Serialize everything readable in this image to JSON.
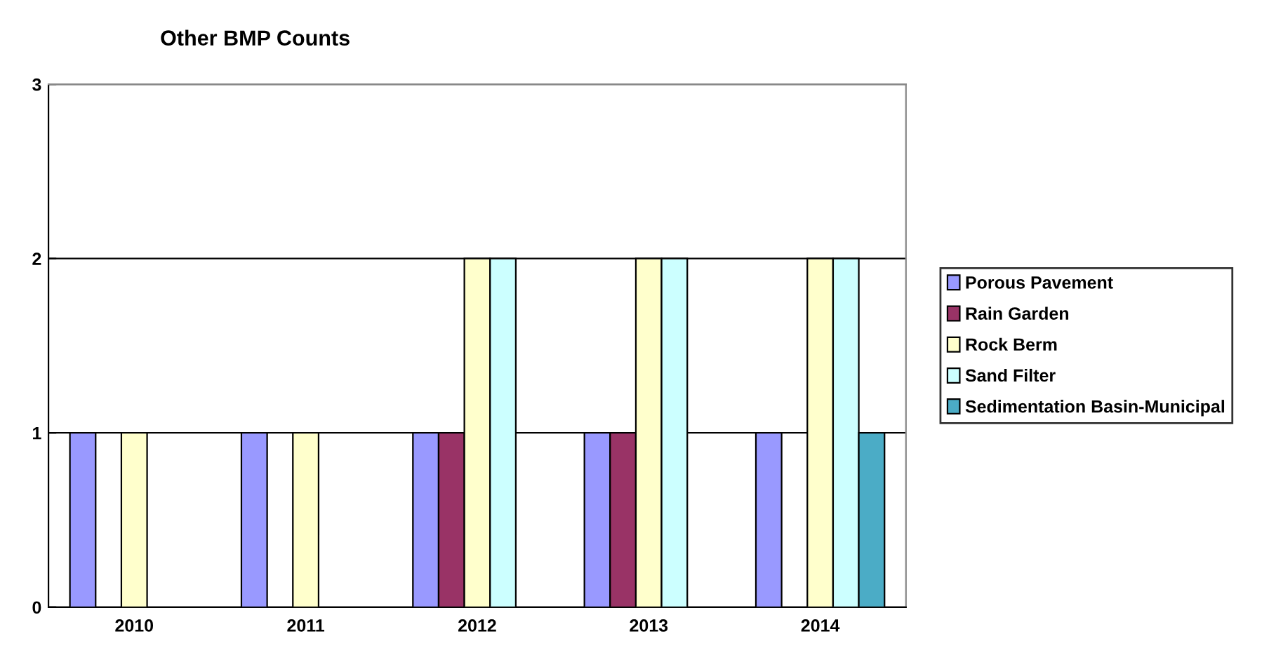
{
  "chart_data": {
    "type": "bar",
    "title": "Other BMP Counts",
    "categories": [
      "2010",
      "2011",
      "2012",
      "2013",
      "2014"
    ],
    "series": [
      {
        "name": "Porous Pavement",
        "color": "#9999ff",
        "values": [
          1,
          1,
          1,
          1,
          1
        ]
      },
      {
        "name": "Rain Garden",
        "color": "#993366",
        "values": [
          null,
          null,
          1,
          1,
          null
        ]
      },
      {
        "name": "Rock Berm",
        "color": "#ffffcc",
        "values": [
          1,
          1,
          2,
          2,
          2
        ]
      },
      {
        "name": "Sand Filter",
        "color": "#ccffff",
        "values": [
          null,
          null,
          2,
          2,
          2
        ]
      },
      {
        "name": "Sedimentation Basin-Municipal",
        "color": "#4bacc6",
        "values": [
          null,
          null,
          null,
          null,
          1
        ]
      }
    ],
    "ylim": [
      0,
      3
    ],
    "yticks": [
      0,
      1,
      2,
      3
    ],
    "grid": "y",
    "legend": "right"
  }
}
